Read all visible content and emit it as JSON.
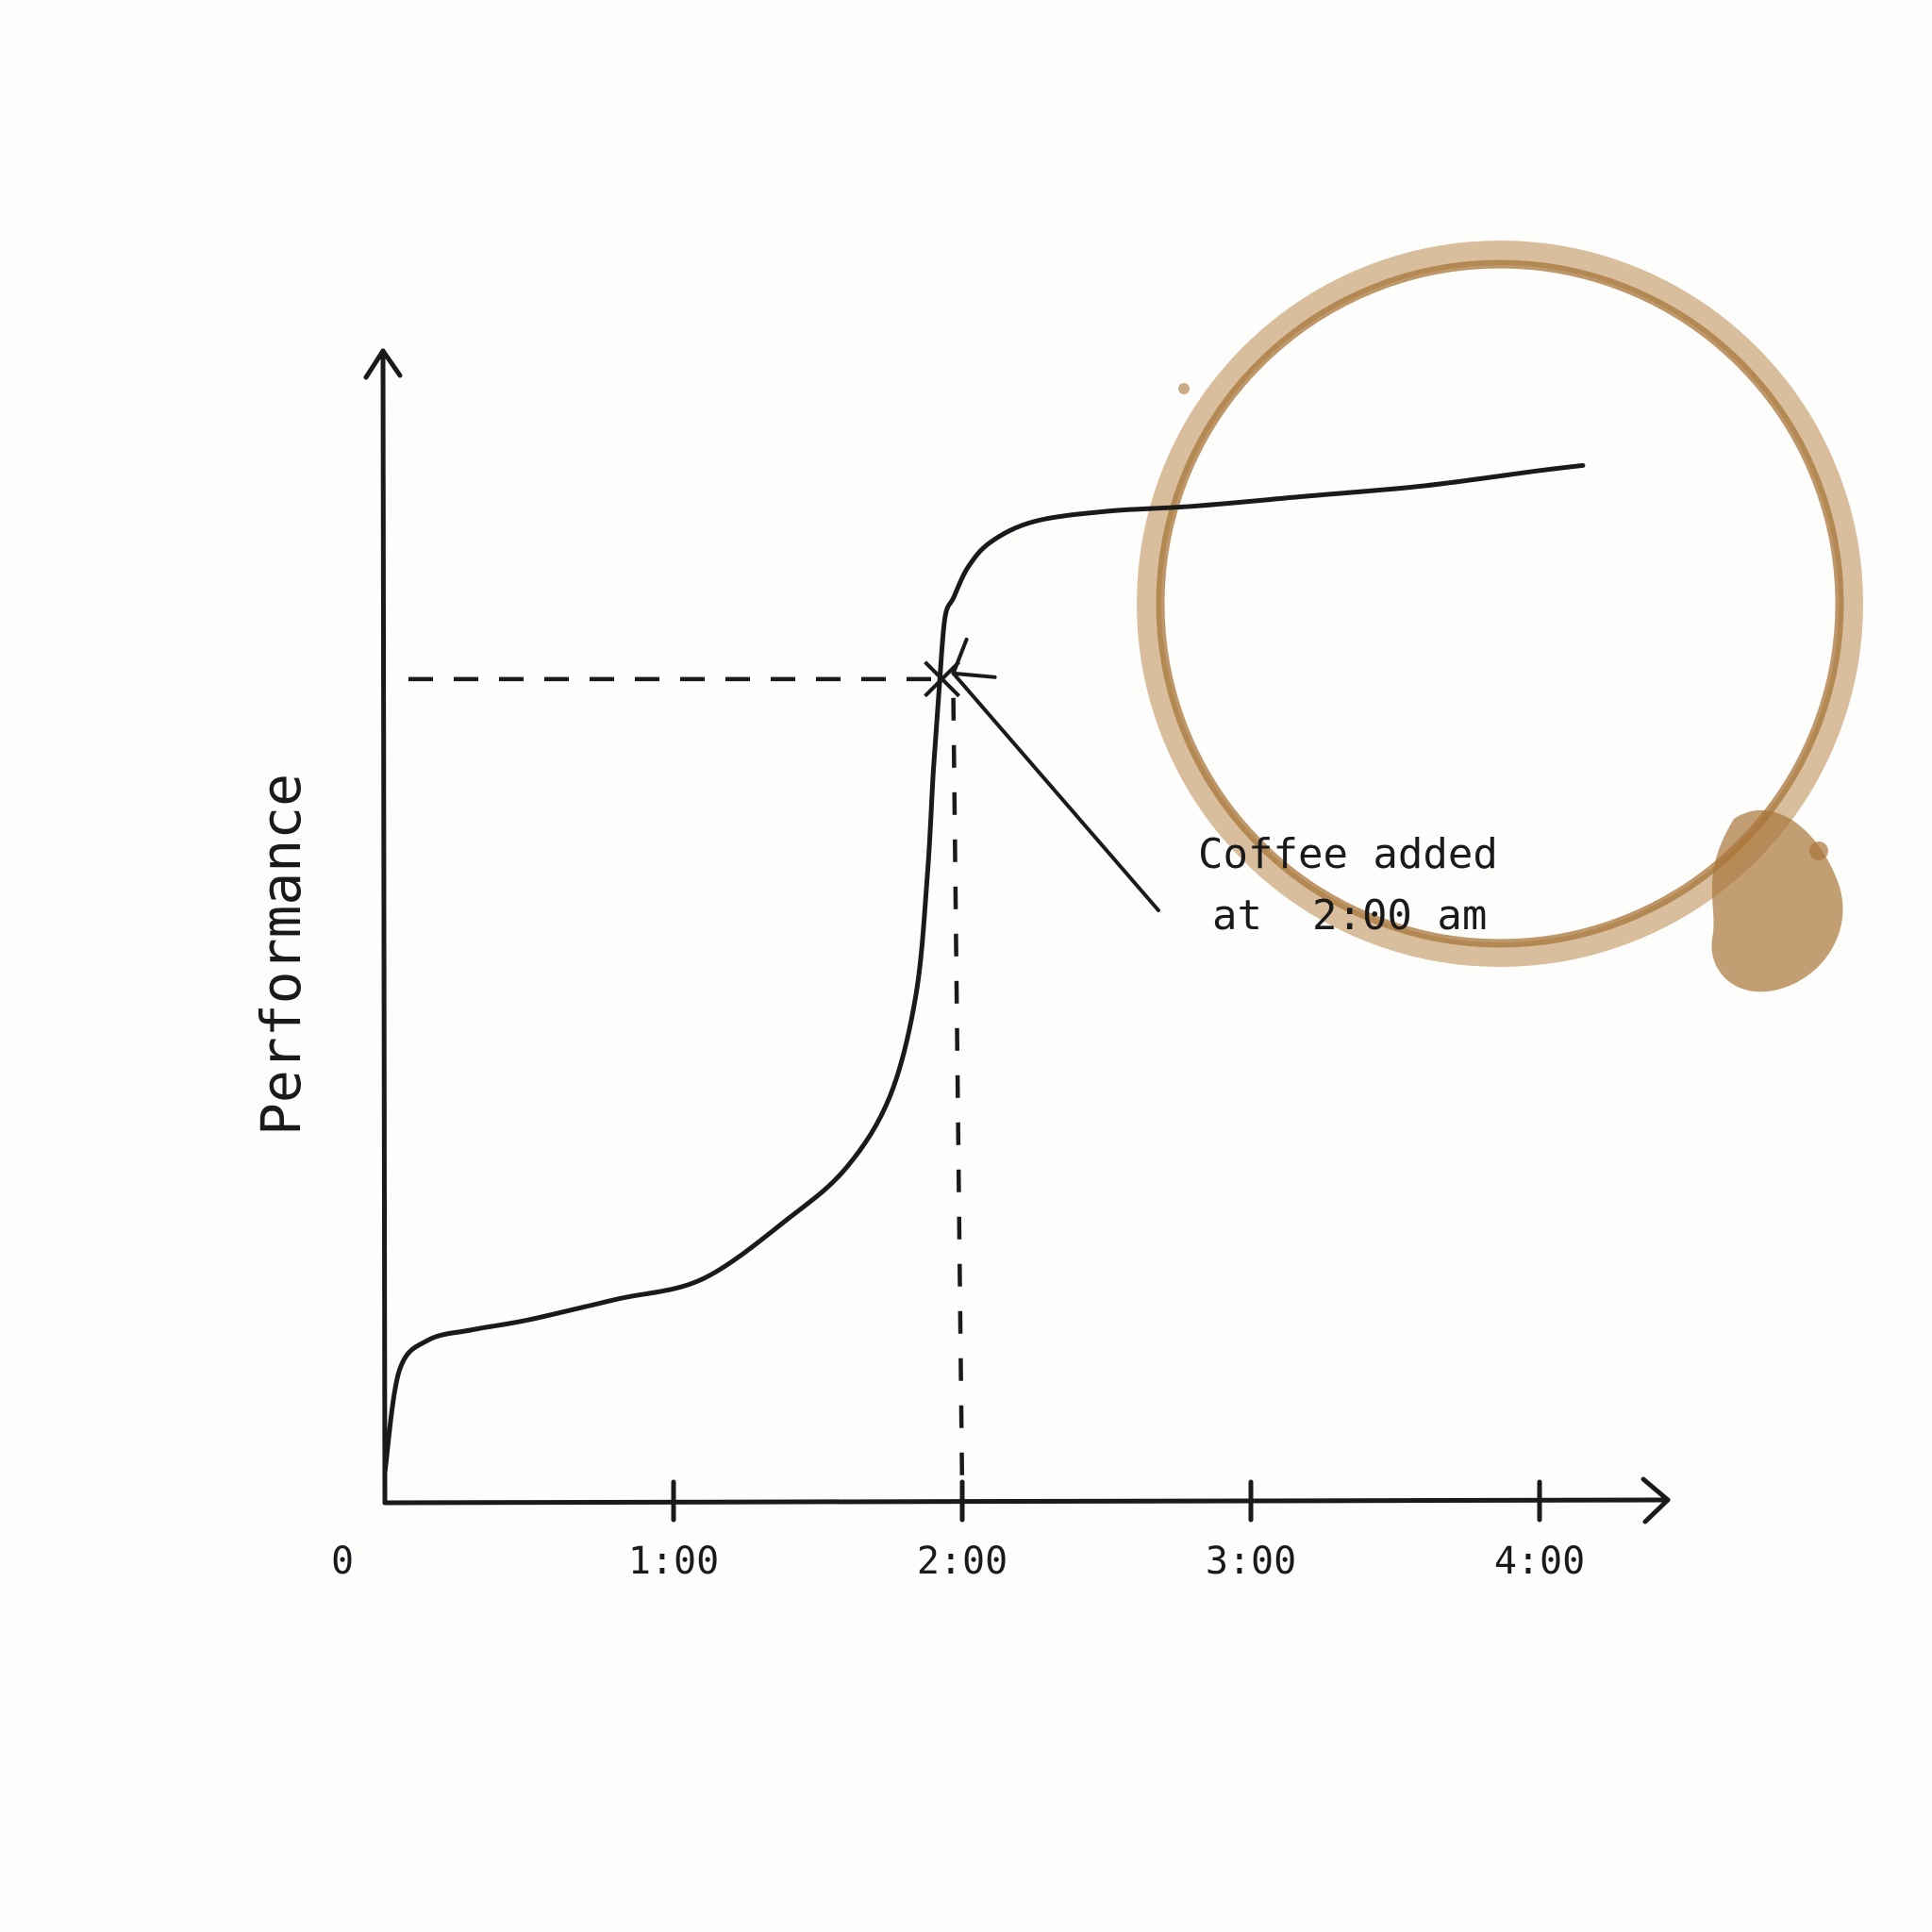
{
  "colors": {
    "ink": "#1a1a1a",
    "paper": "#fdfdfc",
    "coffee": "#b98a4f",
    "coffee_dark": "#a87539"
  },
  "chart_data": {
    "type": "line",
    "title": "",
    "xlabel": "",
    "ylabel": "Performance",
    "xlim": [
      0,
      4.7
    ],
    "ylim": [
      0,
      100
    ],
    "x_ticks": [
      {
        "value": 0,
        "label": "0"
      },
      {
        "value": 1,
        "label": "1:00"
      },
      {
        "value": 2,
        "label": "2:00"
      },
      {
        "value": 3,
        "label": "3:00"
      },
      {
        "value": 4,
        "label": "4:00"
      }
    ],
    "grid": false,
    "y_axis_labels": false,
    "series": [
      {
        "name": "",
        "x": [
          0,
          0.05,
          0.15,
          0.3,
          0.5,
          0.8,
          1.1,
          1.4,
          1.6,
          1.75,
          1.84,
          1.88,
          1.9,
          1.92,
          1.94,
          1.97,
          2.02,
          2.1,
          2.25,
          2.5,
          2.8,
          3.2,
          3.6,
          4.0,
          4.15
        ],
        "y": [
          3,
          13,
          16,
          17,
          18,
          20,
          22,
          28,
          33,
          40,
          50,
          62,
          72,
          80,
          87,
          89,
          92,
          94.5,
          96.5,
          97.5,
          98,
          99,
          100,
          101.5,
          102
        ]
      }
    ],
    "annotation": {
      "text_lines": [
        "Coffee added",
        "at  2:00 am"
      ],
      "point": {
        "x": 1.93,
        "y": 81
      },
      "dashed_guides": true
    },
    "decoration": "coffee-ring-stain"
  }
}
